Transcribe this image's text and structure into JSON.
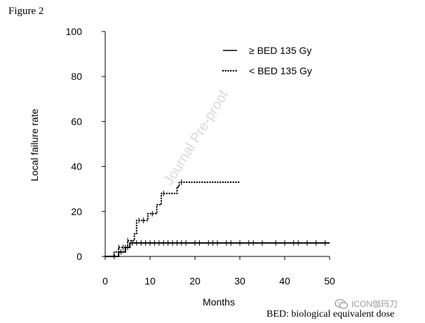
{
  "figure_label": "Figure 2",
  "footnote": "BED: biological equivalent dose",
  "watermark": "Journal Pre-proof",
  "brand_watermark": {
    "text": "ICON伽玛刀",
    "icon": "wechat-icon"
  },
  "chart_data": {
    "type": "line",
    "subtype": "kaplan-meier step curve",
    "xlabel": "Months",
    "ylabel": "Local failure rate",
    "xlim": [
      0,
      50
    ],
    "ylim": [
      0,
      100
    ],
    "xticks": [
      0,
      10,
      20,
      30,
      40,
      50
    ],
    "yticks": [
      0,
      20,
      40,
      60,
      80,
      100
    ],
    "grid": false,
    "legend_position": "top-right",
    "series": [
      {
        "name": "≥ BED 135 Gy",
        "style": "solid",
        "steps": [
          [
            0,
            0
          ],
          [
            3,
            0
          ],
          [
            3,
            2
          ],
          [
            4.5,
            2
          ],
          [
            4.5,
            4
          ],
          [
            5.5,
            4
          ],
          [
            5.5,
            6
          ],
          [
            50,
            6
          ]
        ],
        "censored": [
          2,
          3.5,
          4.5,
          5,
          6,
          7,
          8,
          9,
          10,
          11,
          12,
          13,
          14,
          15,
          16,
          17,
          18,
          20,
          21,
          23,
          24,
          25,
          27,
          28,
          30,
          32,
          33,
          35,
          38,
          40,
          42,
          43,
          45,
          47,
          49
        ]
      },
      {
        "name": "< BED 135 Gy",
        "style": "dotted",
        "steps": [
          [
            0,
            0
          ],
          [
            2,
            0
          ],
          [
            2,
            2
          ],
          [
            3,
            2
          ],
          [
            3,
            4
          ],
          [
            5,
            4
          ],
          [
            5,
            7
          ],
          [
            6.5,
            7
          ],
          [
            6.5,
            10
          ],
          [
            7,
            10
          ],
          [
            7,
            16
          ],
          [
            9.5,
            16
          ],
          [
            9.5,
            19
          ],
          [
            11.5,
            19
          ],
          [
            11.5,
            23
          ],
          [
            12.5,
            23
          ],
          [
            12.5,
            28
          ],
          [
            16,
            28
          ],
          [
            16,
            31
          ],
          [
            16.5,
            31
          ],
          [
            16.5,
            33
          ],
          [
            30,
            33
          ]
        ],
        "censored": [
          3,
          4,
          5,
          7.5,
          8.5,
          10.5,
          13,
          17
        ]
      }
    ]
  }
}
